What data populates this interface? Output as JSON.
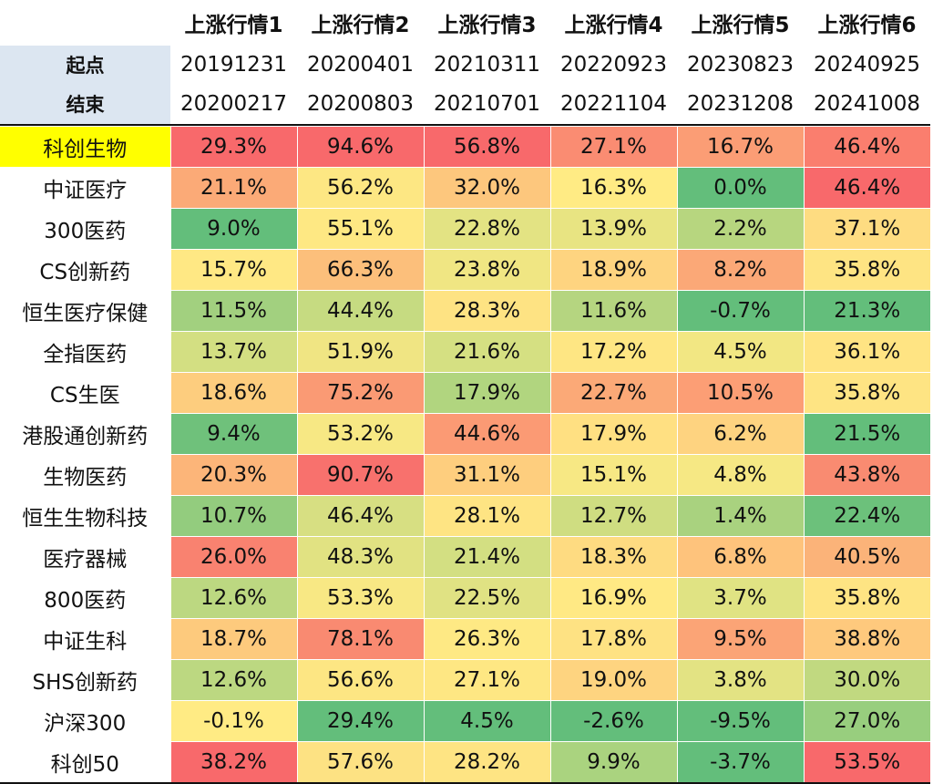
{
  "columns": [
    "上涨行情1",
    "上涨行情2",
    "上涨行情3",
    "上涨行情4",
    "上涨行情5",
    "上涨行情6"
  ],
  "start_label": "起点",
  "end_label": "结束",
  "start_dates": [
    "20191231",
    "20200401",
    "20210311",
    "20220923",
    "20230823",
    "20240925"
  ],
  "end_dates": [
    "20200217",
    "20200803",
    "20210701",
    "20221104",
    "20231208",
    "20241008"
  ],
  "highlight_color": "#ffff00",
  "label_bg_color": "#dce6f1",
  "rows": [
    {
      "name": "科创生物",
      "highlight": true,
      "values": [
        "29.3%",
        "94.6%",
        "56.8%",
        "27.1%",
        "16.7%",
        "46.4%"
      ],
      "colors": [
        "#f8696b",
        "#f8696b",
        "#f8696b",
        "#fa8c72",
        "#fb9d75",
        "#fa7e6e"
      ]
    },
    {
      "name": "中证医疗",
      "highlight": false,
      "values": [
        "21.1%",
        "56.2%",
        "32.0%",
        "16.3%",
        "0.0%",
        "46.4%"
      ],
      "colors": [
        "#fbaa77",
        "#fde783",
        "#fdc77d",
        "#ffeb84",
        "#63be7b",
        "#f8696b"
      ]
    },
    {
      "name": "300医药",
      "highlight": false,
      "values": [
        "9.0%",
        "55.1%",
        "22.8%",
        "13.9%",
        "2.2%",
        "37.1%"
      ],
      "colors": [
        "#63be7b",
        "#fee883",
        "#e3e383",
        "#e8e482",
        "#b7d67f",
        "#fedc81"
      ]
    },
    {
      "name": "CS创新药",
      "highlight": false,
      "values": [
        "15.7%",
        "66.3%",
        "23.8%",
        "18.9%",
        "8.2%",
        "35.8%"
      ],
      "colors": [
        "#ffe884",
        "#fcbf7b",
        "#f0e683",
        "#fed480",
        "#fba877",
        "#fee483"
      ]
    },
    {
      "name": "恒生医疗保健",
      "highlight": false,
      "values": [
        "11.5%",
        "44.4%",
        "28.3%",
        "11.6%",
        "-0.7%",
        "21.3%"
      ],
      "colors": [
        "#a2d07f",
        "#c6db81",
        "#fee383",
        "#b5d580",
        "#63be7b",
        "#63be7b"
      ]
    },
    {
      "name": "全指医药",
      "highlight": false,
      "values": [
        "13.7%",
        "51.9%",
        "21.6%",
        "17.2%",
        "4.5%",
        "36.1%"
      ],
      "colors": [
        "#d3df82",
        "#f0e583",
        "#d5e082",
        "#fee683",
        "#f2e783",
        "#ffe483"
      ]
    },
    {
      "name": "CS生医",
      "highlight": false,
      "values": [
        "18.6%",
        "75.2%",
        "17.9%",
        "22.7%",
        "10.5%",
        "35.8%"
      ],
      "colors": [
        "#fdcd7e",
        "#fa9a74",
        "#b1d57f",
        "#fba977",
        "#fc9e75",
        "#fee483"
      ]
    },
    {
      "name": "港股通创新药",
      "highlight": false,
      "values": [
        "9.4%",
        "53.2%",
        "44.6%",
        "17.9%",
        "6.2%",
        "21.5%"
      ],
      "colors": [
        "#6fc17b",
        "#f7e884",
        "#fb9a74",
        "#ffe082",
        "#fed380",
        "#63be7b"
      ]
    },
    {
      "name": "生物医药",
      "highlight": false,
      "values": [
        "20.3%",
        "90.7%",
        "31.1%",
        "15.1%",
        "4.8%",
        "43.8%"
      ],
      "colors": [
        "#fcb579",
        "#f8716d",
        "#fece7e",
        "#f7e884",
        "#f6e884",
        "#f98b71"
      ]
    },
    {
      "name": "恒生生物科技",
      "highlight": false,
      "values": [
        "10.7%",
        "46.4%",
        "28.1%",
        "12.7%",
        "1.4%",
        "22.4%"
      ],
      "colors": [
        "#93cc7e",
        "#d7df82",
        "#fee483",
        "#cfdd81",
        "#a9d27f",
        "#6cc17b"
      ]
    },
    {
      "name": "医疗器械",
      "highlight": false,
      "values": [
        "26.0%",
        "48.3%",
        "21.4%",
        "18.3%",
        "6.8%",
        "40.5%"
      ],
      "colors": [
        "#f98270",
        "#e1e282",
        "#d3df82",
        "#fedb81",
        "#fec37c",
        "#fbb379"
      ]
    },
    {
      "name": "800医药",
      "highlight": false,
      "values": [
        "12.6%",
        "53.3%",
        "22.5%",
        "16.9%",
        "3.7%",
        "35.8%"
      ],
      "colors": [
        "#bcd881",
        "#f8e884",
        "#e0e283",
        "#ffe984",
        "#e0e383",
        "#fee483"
      ]
    },
    {
      "name": "中证生科",
      "highlight": false,
      "values": [
        "18.7%",
        "78.1%",
        "26.3%",
        "17.8%",
        "9.5%",
        "38.8%"
      ],
      "colors": [
        "#fdca7d",
        "#f98a71",
        "#fee984",
        "#fee283",
        "#fba476",
        "#fec97d"
      ]
    },
    {
      "name": "SHS创新药",
      "highlight": false,
      "values": [
        "12.6%",
        "56.6%",
        "27.1%",
        "19.0%",
        "3.8%",
        "30.0%"
      ],
      "colors": [
        "#bcd881",
        "#fde683",
        "#fee783",
        "#fed480",
        "#e3e383",
        "#c1d980"
      ]
    },
    {
      "name": "沪深300",
      "highlight": false,
      "values": [
        "-0.1%",
        "29.4%",
        "4.5%",
        "-2.6%",
        "-9.5%",
        "27.0%"
      ],
      "colors": [
        "#ffeb84",
        "#63be7b",
        "#63be7b",
        "#63be7b",
        "#63be7b",
        "#98ce7e"
      ]
    },
    {
      "name": "科创50",
      "highlight": false,
      "values": [
        "38.2%",
        "57.6%",
        "28.2%",
        "9.9%",
        "-3.7%",
        "53.5%"
      ],
      "colors": [
        "#f8696b",
        "#fde283",
        "#fee483",
        "#aad37f",
        "#63be7b",
        "#f8696b"
      ]
    }
  ]
}
